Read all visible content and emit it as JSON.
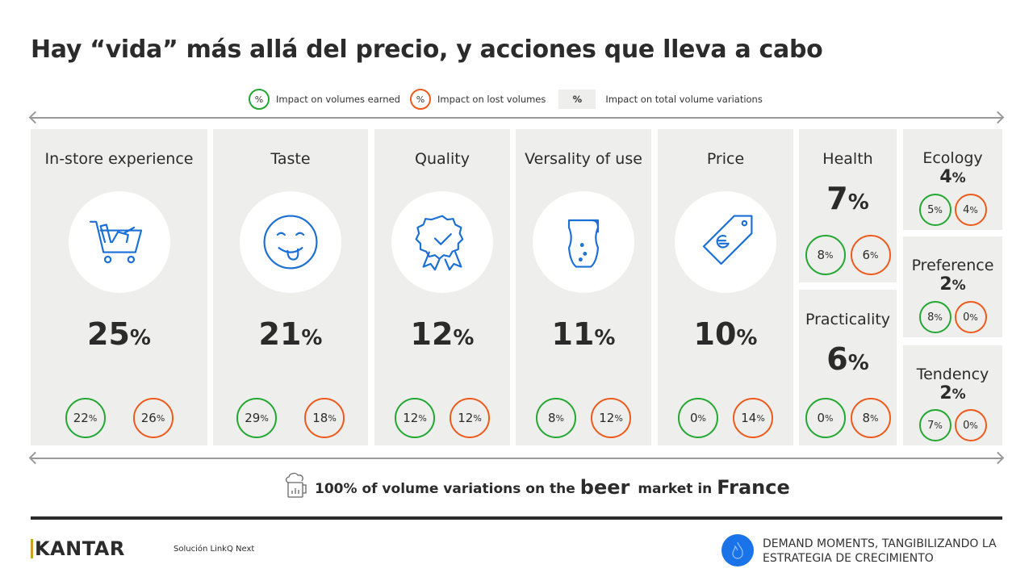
{
  "title": "Hay “vida” más allá del precio, y acciones que lleva a cabo",
  "legend": {
    "symbol": "%",
    "earned": "Impact on volumes earned",
    "lost": "Impact on lost volumes",
    "total": "Impact on total volume variations"
  },
  "colors": {
    "earned": "#22a832",
    "lost": "#ee5a1c",
    "icon": "#1a6fd6",
    "panel": "#eeeeec"
  },
  "drivers": [
    {
      "name": "In-store experience",
      "icon": "shopping-cart-icon",
      "total": "25",
      "earned": "22",
      "lost": "26"
    },
    {
      "name": "Taste",
      "icon": "tongue-smiley-icon",
      "total": "21",
      "earned": "29",
      "lost": "18"
    },
    {
      "name": "Quality",
      "icon": "quality-badge-icon",
      "total": "12",
      "earned": "12",
      "lost": "12"
    },
    {
      "name": "Versality of use",
      "icon": "beer-glass-icon",
      "total": "11",
      "earned": "8",
      "lost": "12"
    },
    {
      "name": "Price",
      "icon": "euro-price-tag-icon",
      "total": "10",
      "earned": "0",
      "lost": "14"
    },
    {
      "name": "Health",
      "total": "7",
      "earned": "8",
      "lost": "6"
    },
    {
      "name": "Practicality",
      "total": "6",
      "earned": "0",
      "lost": "8"
    },
    {
      "name": "Ecology",
      "total": "4",
      "earned": "5",
      "lost": "4"
    },
    {
      "name": "Preference",
      "total": "2",
      "earned": "8",
      "lost": "0"
    },
    {
      "name": "Tendency",
      "total": "2",
      "earned": "7",
      "lost": "0"
    }
  ],
  "pct": "%",
  "summary": {
    "a": "100% of volume variations on the",
    "b": "beer",
    "c": "market in",
    "d": "France"
  },
  "footer": {
    "logo": "KANTAR",
    "solution": "Solución LinkQ Next",
    "tagline1": "DEMAND MOMENTS, TANGIBILIZANDO LA",
    "tagline2": "ESTRATEGIA DE CRECIMIENTO"
  }
}
